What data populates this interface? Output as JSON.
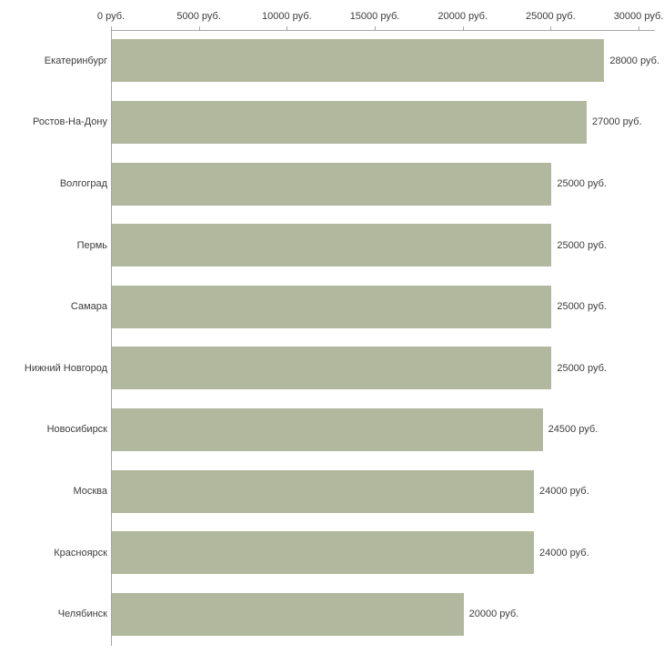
{
  "chart_data": {
    "type": "bar",
    "orientation": "horizontal",
    "title": "",
    "xlabel": "",
    "ylabel": "",
    "unit_suffix": " руб.",
    "categories": [
      "Екатеринбург",
      "Ростов-На-Дону",
      "Волгоград",
      "Пермь",
      "Самара",
      "Нижний Новгород",
      "Новосибирск",
      "Москва",
      "Красноярск",
      "Челябинск"
    ],
    "values": [
      28000,
      27000,
      25000,
      25000,
      25000,
      25000,
      24500,
      24000,
      24000,
      20000
    ],
    "value_labels": [
      "28000 руб.",
      "27000 руб.",
      "25000 руб.",
      "25000 руб.",
      "25000 руб.",
      "25000 руб.",
      "24500 руб.",
      "24000 руб.",
      "24000 руб.",
      "20000 руб."
    ],
    "x_ticks": [
      0,
      5000,
      10000,
      15000,
      20000,
      25000,
      30000
    ],
    "x_tick_labels": [
      "0 руб.",
      "5000 руб.",
      "10000 руб.",
      "15000 руб.",
      "20000 руб.",
      "25000 руб.",
      "30000 руб."
    ],
    "xlim": [
      0,
      30000
    ],
    "grid": false,
    "legend": "none",
    "bar_color": "#b1b89d",
    "axis_color": "#a6a6a6",
    "text_color": "#3c3c3c"
  }
}
